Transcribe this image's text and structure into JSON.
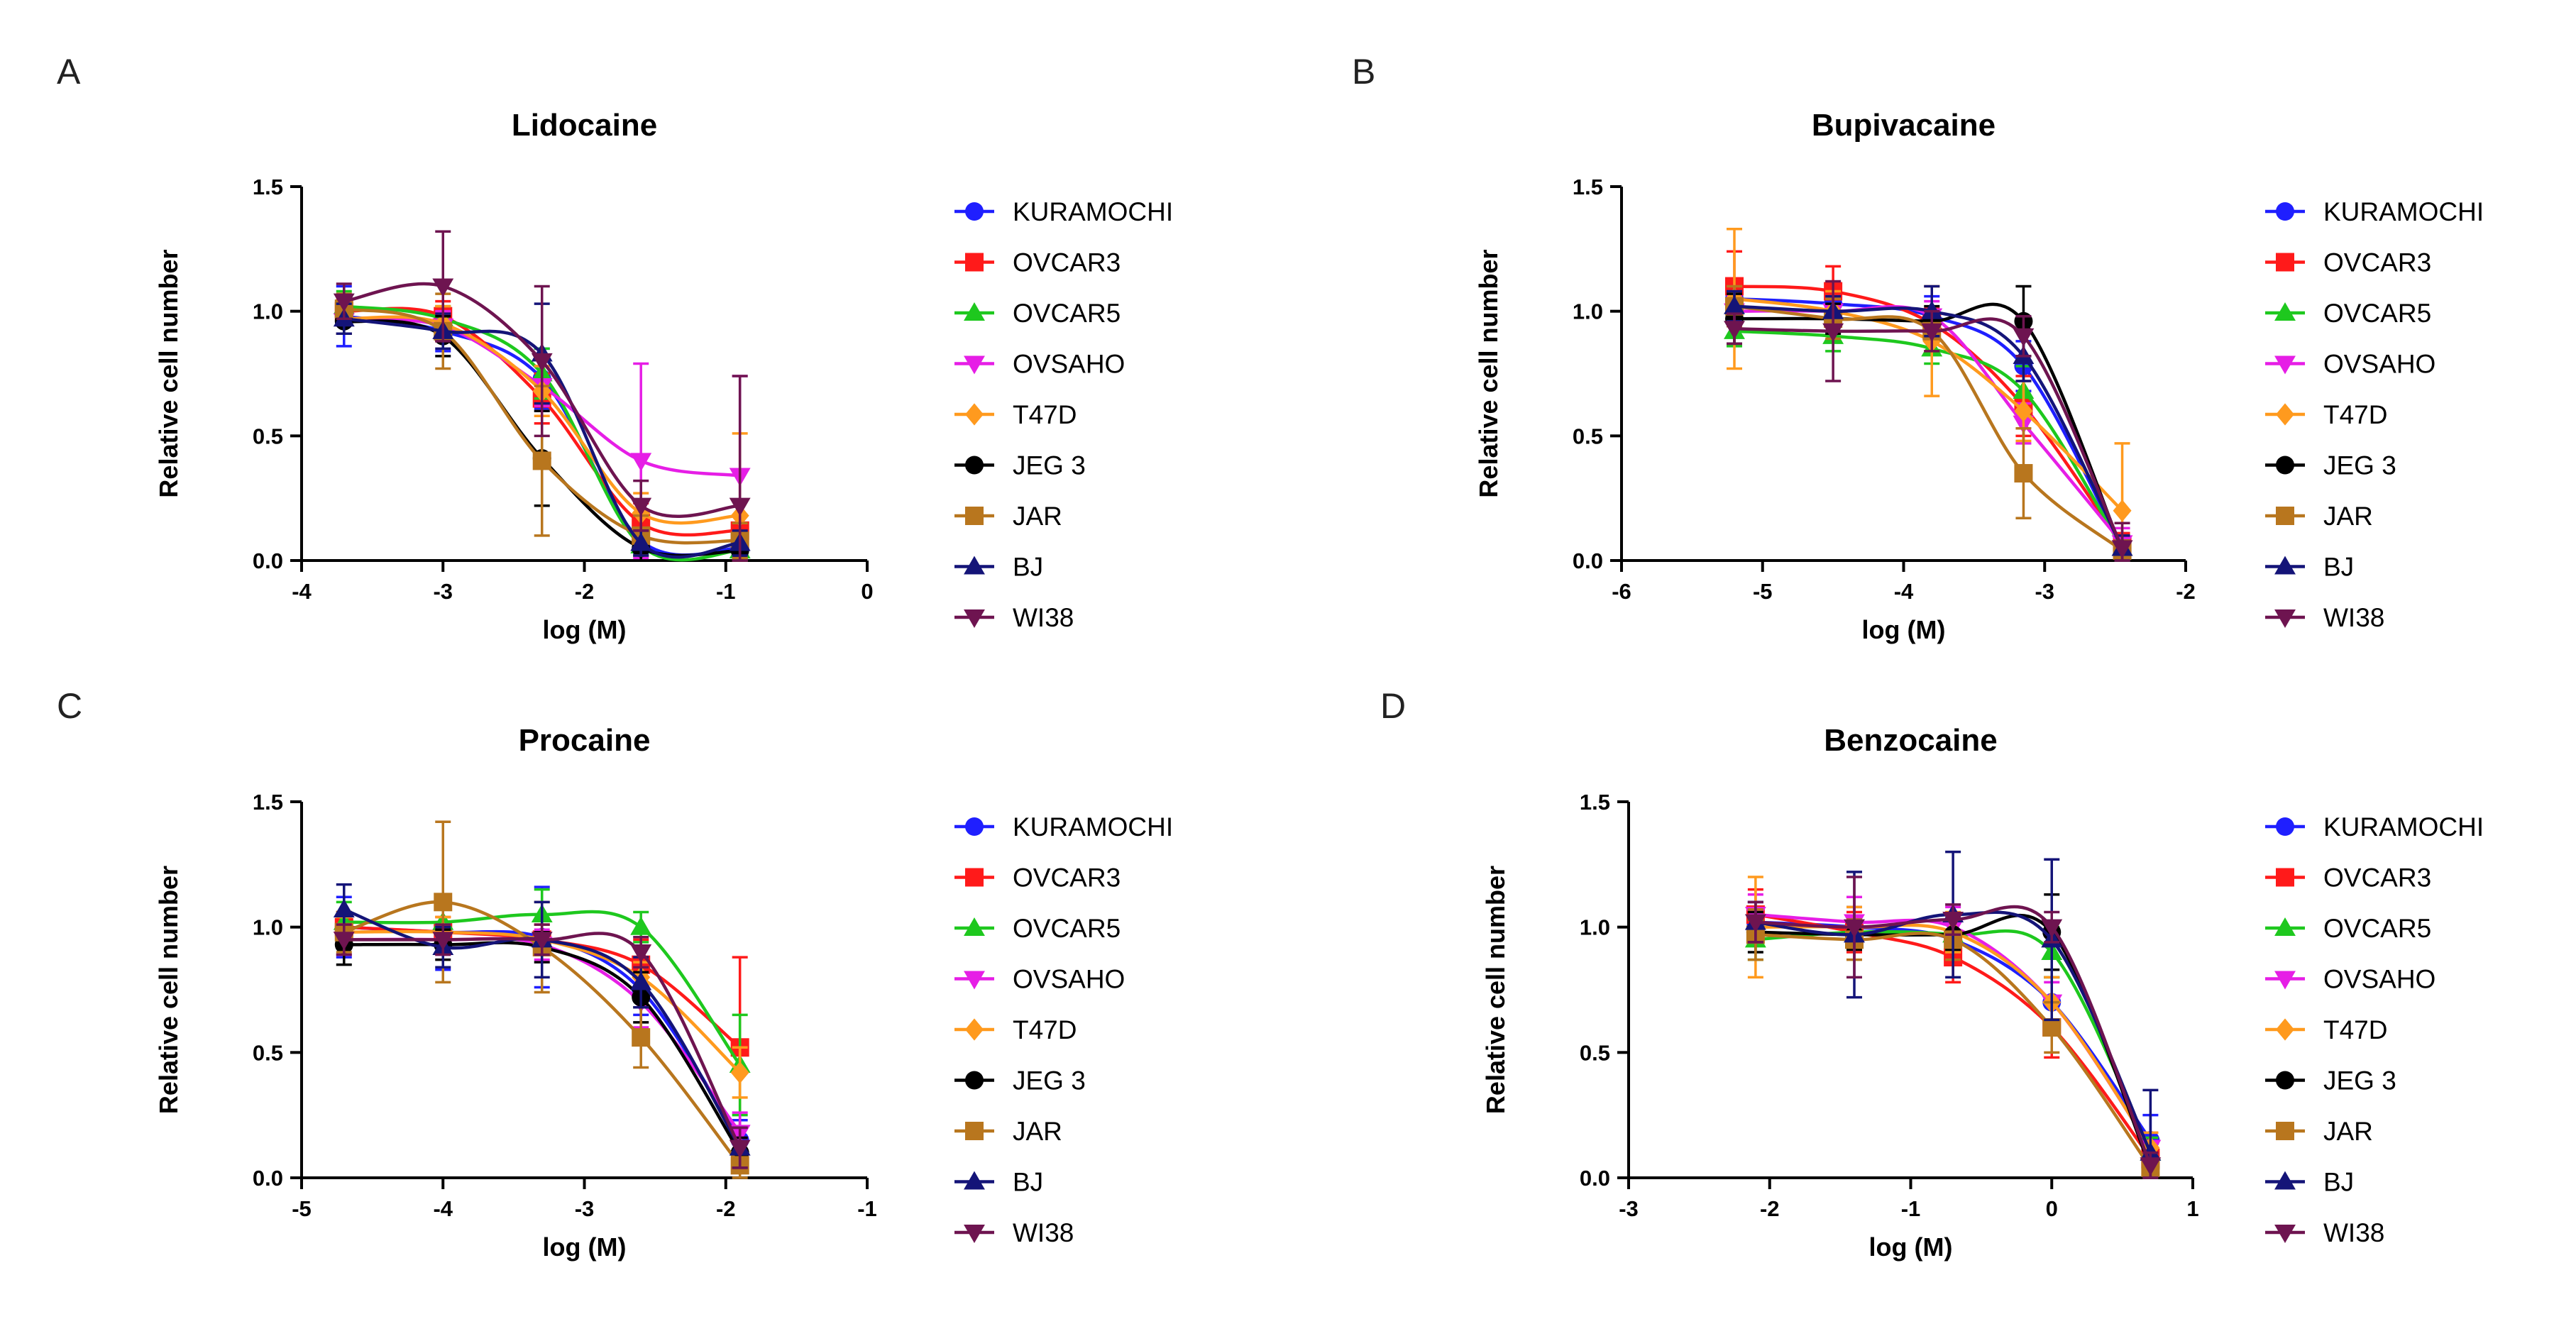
{
  "series_styles": {
    "KURAMOCHI": {
      "color": "#1f1fff",
      "marker": "circle"
    },
    "OVCAR3": {
      "color": "#ff1a1a",
      "marker": "square"
    },
    "OVCAR5": {
      "color": "#1ec81e",
      "marker": "triangle-up"
    },
    "OVSAHO": {
      "color": "#e61ee6",
      "marker": "triangle-down"
    },
    "T47D": {
      "color": "#ff9a1e",
      "marker": "diamond"
    },
    "JEG 3": {
      "color": "#000000",
      "marker": "circle"
    },
    "JAR": {
      "color": "#b8761e",
      "marker": "square"
    },
    "BJ": {
      "color": "#141478",
      "marker": "triangle-up"
    },
    "WI38": {
      "color": "#6e1450",
      "marker": "triangle-down"
    }
  },
  "chart_data": [
    {
      "panel": "A",
      "type": "line",
      "title": "Lidocaine",
      "xlabel": "log (M)",
      "ylabel": "Relative cell number",
      "xlim": [
        -4,
        0
      ],
      "ylim": [
        0,
        1.5
      ],
      "xticks": [
        "-4",
        "-3",
        "-2",
        "-1",
        "0"
      ],
      "yticks": [
        "0.0",
        "0.5",
        "1.0",
        "1.5"
      ],
      "x": [
        -3.7,
        -3.0,
        -2.3,
        -1.6,
        -0.9
      ],
      "series": [
        {
          "name": "KURAMOCHI",
          "values": [
            0.98,
            0.92,
            0.73,
            0.08,
            0.05
          ],
          "errors": [
            0.12,
            0.08,
            0.12,
            0.05,
            0.04
          ]
        },
        {
          "name": "OVCAR3",
          "values": [
            1.0,
            0.98,
            0.65,
            0.15,
            0.12
          ],
          "errors": [
            0.05,
            0.06,
            0.1,
            0.08,
            0.06
          ]
        },
        {
          "name": "OVCAR5",
          "values": [
            1.02,
            0.97,
            0.75,
            0.06,
            0.04
          ],
          "errors": [
            0.06,
            0.05,
            0.1,
            0.04,
            0.03
          ]
        },
        {
          "name": "OVSAHO",
          "values": [
            0.96,
            0.94,
            0.7,
            0.4,
            0.34
          ],
          "errors": [
            0.05,
            0.06,
            0.08,
            0.39,
            0.4
          ]
        },
        {
          "name": "T47D",
          "values": [
            0.97,
            0.95,
            0.68,
            0.19,
            0.18
          ],
          "errors": [
            0.06,
            0.07,
            0.1,
            0.08,
            0.33
          ]
        },
        {
          "name": "JEG 3",
          "values": [
            0.96,
            0.9,
            0.41,
            0.05,
            0.04
          ],
          "errors": [
            0.05,
            0.08,
            0.19,
            0.05,
            0.04
          ]
        },
        {
          "name": "JAR",
          "values": [
            1.01,
            0.92,
            0.4,
            0.1,
            0.08
          ],
          "errors": [
            0.06,
            0.15,
            0.3,
            0.08,
            0.07
          ]
        },
        {
          "name": "BJ",
          "values": [
            0.97,
            0.92,
            0.83,
            0.07,
            0.07
          ],
          "errors": [
            0.06,
            0.07,
            0.2,
            0.05,
            0.05
          ]
        },
        {
          "name": "WI38",
          "values": [
            1.04,
            1.1,
            0.8,
            0.22,
            0.22
          ],
          "errors": [
            0.07,
            0.22,
            0.3,
            0.1,
            0.52
          ]
        }
      ]
    },
    {
      "panel": "B",
      "type": "line",
      "title": "Bupivacaine",
      "xlabel": "log (M)",
      "ylabel": "Relative cell number",
      "xlim": [
        -6,
        -2
      ],
      "ylim": [
        0,
        1.5
      ],
      "xticks": [
        "-6",
        "-5",
        "-4",
        "-3",
        "-2"
      ],
      "yticks": [
        "0.0",
        "0.5",
        "1.0",
        "1.5"
      ],
      "x": [
        -5.2,
        -4.5,
        -3.8,
        -3.15,
        -2.45
      ],
      "series": [
        {
          "name": "KURAMOCHI",
          "values": [
            1.05,
            1.03,
            0.98,
            0.78,
            0.05
          ],
          "errors": [
            0.08,
            0.06,
            0.08,
            0.1,
            0.05
          ]
        },
        {
          "name": "OVCAR3",
          "values": [
            1.1,
            1.08,
            0.95,
            0.62,
            0.06
          ],
          "errors": [
            0.14,
            0.1,
            0.06,
            0.12,
            0.05
          ]
        },
        {
          "name": "OVCAR5",
          "values": [
            0.92,
            0.9,
            0.85,
            0.68,
            0.05
          ],
          "errors": [
            0.06,
            0.06,
            0.06,
            0.1,
            0.05
          ]
        },
        {
          "name": "OVSAHO",
          "values": [
            1.0,
            1.0,
            0.98,
            0.55,
            0.07
          ],
          "errors": [
            0.06,
            0.06,
            0.06,
            0.08,
            0.06
          ]
        },
        {
          "name": "T47D",
          "values": [
            1.05,
            1.0,
            0.88,
            0.6,
            0.2
          ],
          "errors": [
            0.28,
            0.08,
            0.22,
            0.12,
            0.27
          ]
        },
        {
          "name": "JEG 3",
          "values": [
            0.97,
            0.97,
            0.96,
            0.96,
            0.04
          ],
          "errors": [
            0.1,
            0.06,
            0.06,
            0.14,
            0.04
          ]
        },
        {
          "name": "JAR",
          "values": [
            1.02,
            0.97,
            0.92,
            0.35,
            0.04
          ],
          "errors": [
            0.08,
            0.08,
            0.08,
            0.18,
            0.04
          ]
        },
        {
          "name": "BJ",
          "values": [
            1.02,
            1.0,
            1.0,
            0.82,
            0.05
          ],
          "errors": [
            0.06,
            0.06,
            0.1,
            0.1,
            0.05
          ]
        },
        {
          "name": "WI38",
          "values": [
            0.93,
            0.92,
            0.92,
            0.9,
            0.05
          ],
          "errors": [
            0.06,
            0.2,
            0.08,
            0.08,
            0.1
          ]
        }
      ]
    },
    {
      "panel": "C",
      "type": "line",
      "title": "Procaine",
      "xlabel": "log (M)",
      "ylabel": "Relative cell number",
      "xlim": [
        -5,
        -1
      ],
      "ylim": [
        0,
        1.5
      ],
      "xticks": [
        "-5",
        "-4",
        "-3",
        "-2",
        "-1"
      ],
      "yticks": [
        "0.0",
        "0.5",
        "1.0",
        "1.5"
      ],
      "x": [
        -4.7,
        -4.0,
        -3.3,
        -2.6,
        -1.9
      ],
      "series": [
        {
          "name": "KURAMOCHI",
          "values": [
            1.0,
            0.98,
            0.96,
            0.75,
            0.15
          ],
          "errors": [
            0.12,
            0.15,
            0.2,
            0.1,
            0.08
          ]
        },
        {
          "name": "OVCAR3",
          "values": [
            1.0,
            0.98,
            0.95,
            0.85,
            0.52
          ],
          "errors": [
            0.06,
            0.06,
            0.06,
            0.1,
            0.36
          ]
        },
        {
          "name": "OVCAR5",
          "values": [
            1.02,
            1.02,
            1.05,
            1.0,
            0.45
          ],
          "errors": [
            0.08,
            0.08,
            0.1,
            0.06,
            0.2
          ]
        },
        {
          "name": "OVSAHO",
          "values": [
            0.95,
            0.95,
            0.93,
            0.7,
            0.18
          ],
          "errors": [
            0.06,
            0.06,
            0.06,
            0.1,
            0.08
          ]
        },
        {
          "name": "T47D",
          "values": [
            0.98,
            0.98,
            0.95,
            0.8,
            0.42
          ],
          "errors": [
            0.06,
            0.06,
            0.06,
            0.06,
            0.1
          ]
        },
        {
          "name": "JEG 3",
          "values": [
            0.93,
            0.93,
            0.92,
            0.72,
            0.1
          ],
          "errors": [
            0.08,
            0.06,
            0.06,
            0.1,
            0.06
          ]
        },
        {
          "name": "JAR",
          "values": [
            0.98,
            1.1,
            0.92,
            0.56,
            0.05
          ],
          "errors": [
            0.08,
            0.32,
            0.18,
            0.12,
            0.05
          ]
        },
        {
          "name": "BJ",
          "values": [
            1.07,
            0.92,
            0.95,
            0.78,
            0.12
          ],
          "errors": [
            0.1,
            0.08,
            0.15,
            0.1,
            0.08
          ]
        },
        {
          "name": "WI38",
          "values": [
            0.95,
            0.95,
            0.95,
            0.9,
            0.12
          ],
          "errors": [
            0.06,
            0.06,
            0.06,
            0.06,
            0.08
          ]
        }
      ]
    },
    {
      "panel": "D",
      "type": "line",
      "title": "Benzocaine",
      "xlabel": "log (M)",
      "ylabel": "Relative cell number",
      "xlim": [
        -3,
        1
      ],
      "ylim": [
        0,
        1.5
      ],
      "xticks": [
        "-3",
        "-2",
        "-1",
        "0",
        "1"
      ],
      "yticks": [
        "0.0",
        "0.5",
        "1.0",
        "1.5"
      ],
      "x": [
        -2.1,
        -1.4,
        -0.7,
        0.0,
        0.7
      ],
      "series": [
        {
          "name": "KURAMOCHI",
          "values": [
            1.02,
            1.0,
            0.95,
            0.7,
            0.15
          ],
          "errors": [
            0.08,
            0.08,
            0.1,
            0.1,
            0.1
          ]
        },
        {
          "name": "OVCAR3",
          "values": [
            1.05,
            0.98,
            0.88,
            0.6,
            0.08
          ],
          "errors": [
            0.1,
            0.08,
            0.1,
            0.12,
            0.06
          ]
        },
        {
          "name": "OVCAR5",
          "values": [
            0.95,
            0.98,
            0.97,
            0.9,
            0.1
          ],
          "errors": [
            0.08,
            0.06,
            0.06,
            0.1,
            0.06
          ]
        },
        {
          "name": "OVSAHO",
          "values": [
            1.05,
            1.02,
            1.0,
            0.7,
            0.12
          ],
          "errors": [
            0.08,
            0.1,
            0.08,
            0.08,
            0.06
          ]
        },
        {
          "name": "T47D",
          "values": [
            1.0,
            1.0,
            0.98,
            0.7,
            0.12
          ],
          "errors": [
            0.2,
            0.08,
            0.08,
            0.1,
            0.06
          ]
        },
        {
          "name": "JEG 3",
          "values": [
            0.98,
            0.97,
            0.97,
            0.98,
            0.04
          ],
          "errors": [
            0.08,
            0.06,
            0.06,
            0.15,
            0.04
          ]
        },
        {
          "name": "JAR",
          "values": [
            0.97,
            0.95,
            0.95,
            0.6,
            0.04
          ],
          "errors": [
            0.1,
            0.08,
            0.08,
            0.1,
            0.04
          ]
        },
        {
          "name": "BJ",
          "values": [
            1.02,
            0.97,
            1.05,
            0.95,
            0.1
          ],
          "errors": [
            0.08,
            0.25,
            0.25,
            0.32,
            0.25
          ]
        },
        {
          "name": "WI38",
          "values": [
            1.02,
            1.0,
            1.03,
            1.0,
            0.05
          ],
          "errors": [
            0.08,
            0.2,
            0.06,
            0.06,
            0.05
          ]
        }
      ]
    }
  ]
}
